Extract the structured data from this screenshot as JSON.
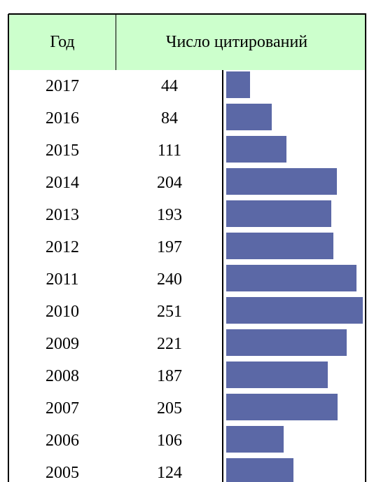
{
  "chart_data": {
    "type": "bar",
    "headers": [
      "Год",
      "Число цитирований"
    ],
    "categories": [
      "2017",
      "2016",
      "2015",
      "2014",
      "2013",
      "2012",
      "2011",
      "2010",
      "2009",
      "2008",
      "2007",
      "2006",
      "2005"
    ],
    "values": [
      44,
      84,
      111,
      204,
      193,
      197,
      240,
      251,
      221,
      187,
      205,
      106,
      124
    ],
    "color": "#5b68a6"
  }
}
